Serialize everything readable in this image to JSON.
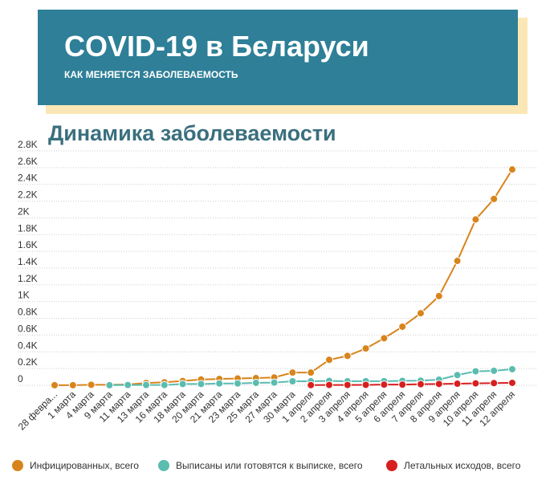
{
  "header": {
    "title": "COVID-19 в Беларуси",
    "subtitle": "КАК МЕНЯЕТСЯ ЗАБОЛЕВАЕМОСТЬ"
  },
  "chart_data": {
    "type": "line",
    "title": "Динамика заболеваемости",
    "categories": [
      "28 февра...",
      "1 марта",
      "4 марта",
      "9 марта",
      "11 марта",
      "13 марта",
      "16 марта",
      "18 марта",
      "20 марта",
      "21 марта",
      "23 марта",
      "25 марта",
      "27 марта",
      "30 марта",
      "1 апреля",
      "2 апреля",
      "3 апреля",
      "4 апреля",
      "5 апреля",
      "6 апреля",
      "7 апреля",
      "8 апреля",
      "9 апреля",
      "10 апреля",
      "11 апреля",
      "12 апреля"
    ],
    "series": [
      {
        "name": "Инфицированных, всего",
        "color": "#d8841c",
        "values": [
          1,
          1,
          6,
          6,
          9,
          27,
          36,
          51,
          69,
          76,
          81,
          86,
          94,
          152,
          152,
          304,
          351,
          440,
          562,
          700,
          861,
          1066,
          1486,
          1981,
          2226,
          2578
        ]
      },
      {
        "name": "Выписаны или готовятся к выписке, всего",
        "color": "#5bbcb0",
        "values": [
          null,
          null,
          null,
          1,
          3,
          3,
          3,
          15,
          15,
          22,
          22,
          29,
          32,
          48,
          48,
          53,
          48,
          49,
          49,
          53,
          55,
          67,
          122,
          167,
          173,
          192
        ]
      },
      {
        "name": "Летальных исходов, всего",
        "color": "#d71f1f",
        "values": [
          null,
          null,
          null,
          null,
          null,
          null,
          null,
          null,
          null,
          null,
          null,
          null,
          null,
          null,
          2,
          4,
          4,
          5,
          8,
          8,
          13,
          16,
          19,
          23,
          26,
          29
        ]
      }
    ],
    "ylim": [
      0,
      2800
    ],
    "yticks": [
      0,
      {
        "value": 200,
        "label": "0.2K"
      },
      {
        "value": 400,
        "label": "0.4K"
      },
      {
        "value": 600,
        "label": "0.6K"
      },
      {
        "value": 800,
        "label": "0.8K"
      },
      {
        "value": 1000,
        "label": "1K"
      },
      {
        "value": 1200,
        "label": "1.2K"
      },
      {
        "value": 1400,
        "label": "1.4K"
      },
      {
        "value": 1600,
        "label": "1.6K"
      },
      {
        "value": 1800,
        "label": "1.8K"
      },
      {
        "value": 2000,
        "label": "2K"
      },
      {
        "value": 2200,
        "label": "2.2K"
      },
      {
        "value": 2400,
        "label": "2.4K"
      },
      {
        "value": 2600,
        "label": "2.6K"
      },
      {
        "value": 2800,
        "label": "2.8K"
      }
    ],
    "grid": true,
    "legend": "bottom"
  }
}
